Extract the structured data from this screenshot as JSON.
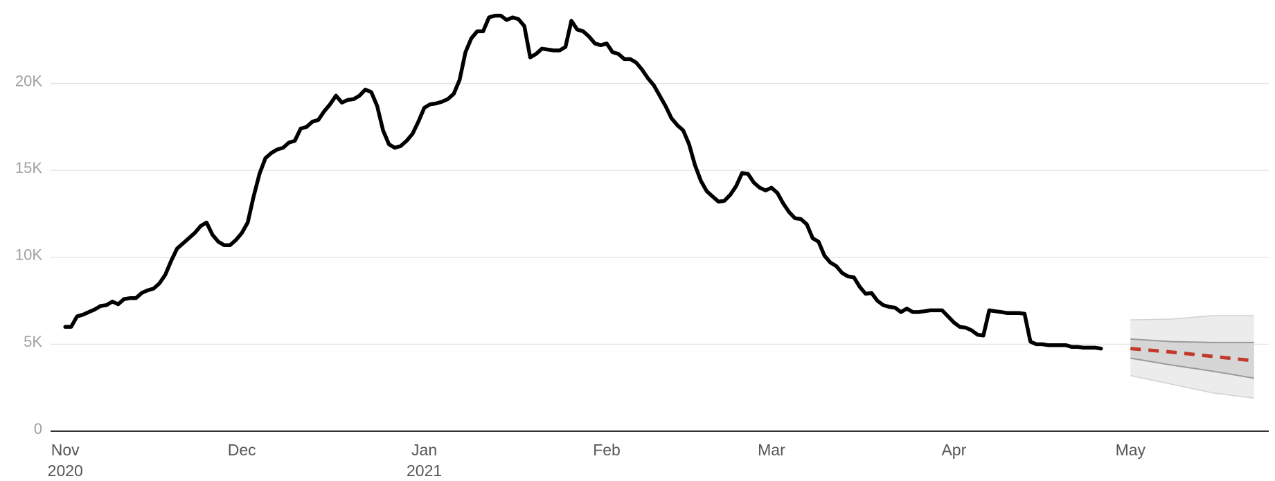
{
  "chart_data": {
    "type": "line",
    "x": [
      0,
      1,
      2,
      3,
      4,
      5,
      6,
      7,
      8,
      9,
      10,
      11,
      12,
      13,
      14,
      15,
      16,
      17,
      18,
      19,
      20,
      21,
      22,
      23,
      24,
      25,
      26,
      27,
      28,
      29,
      30,
      31,
      32,
      33,
      34,
      35,
      36,
      37,
      38,
      39,
      40,
      41,
      42,
      43,
      44,
      45,
      46,
      47,
      48,
      49,
      50,
      51,
      52,
      53,
      54,
      55,
      56,
      57,
      58,
      59,
      60,
      61,
      62,
      63,
      64,
      65,
      66,
      67,
      68,
      69,
      70,
      71,
      72,
      73,
      74,
      75,
      76,
      77,
      78,
      79,
      80,
      81,
      82,
      83,
      84,
      85,
      86,
      87,
      88,
      89,
      90,
      91,
      92,
      93,
      94,
      95,
      96,
      97,
      98,
      99,
      100,
      101,
      102,
      103,
      104,
      105,
      106,
      107,
      108,
      109,
      110,
      111,
      112,
      113,
      114,
      115,
      116,
      117,
      118,
      119,
      120,
      121,
      122,
      123,
      124,
      125,
      126,
      127,
      128,
      129,
      130,
      131,
      132,
      133,
      134,
      135,
      136,
      137,
      138,
      139,
      140,
      141,
      142,
      143,
      144,
      145,
      146,
      147,
      148,
      149,
      150,
      151,
      152,
      153,
      154,
      155,
      156,
      157,
      158,
      159,
      160,
      161,
      162,
      163,
      164,
      165,
      166,
      167,
      168,
      169,
      170,
      171,
      172,
      173,
      174,
      175,
      176
    ],
    "values": [
      6000,
      6000,
      6600,
      6700,
      6850,
      7000,
      7200,
      7250,
      7450,
      7300,
      7600,
      7650,
      7650,
      7950,
      8100,
      8200,
      8500,
      9000,
      9800,
      10500,
      10800,
      11100,
      11400,
      11800,
      12000,
      11300,
      10900,
      10700,
      10700,
      11000,
      11400,
      12000,
      13500,
      14800,
      15700,
      16000,
      16200,
      16300,
      16600,
      16700,
      17400,
      17500,
      17800,
      17900,
      18400,
      18800,
      19300,
      18900,
      19050,
      19100,
      19300,
      19650,
      19500,
      18700,
      17300,
      16500,
      16300,
      16400,
      16700,
      17100,
      17800,
      18600,
      18800,
      18850,
      18950,
      19100,
      19400,
      20200,
      21800,
      22600,
      23000,
      23000,
      23800,
      23900,
      23900,
      23650,
      23800,
      23700,
      23300,
      21500,
      21700,
      22000,
      21950,
      21900,
      21900,
      22100,
      23600,
      23100,
      23000,
      22700,
      22300,
      22200,
      22300,
      21800,
      21700,
      21400,
      21400,
      21200,
      20800,
      20300,
      19900,
      19300,
      18700,
      18000,
      17600,
      17300,
      16500,
      15300,
      14400,
      13800,
      13500,
      13200,
      13250,
      13600,
      14100,
      14850,
      14800,
      14300,
      14000,
      13850,
      14000,
      13700,
      13100,
      12600,
      12250,
      12200,
      11900,
      11100,
      10900,
      10100,
      9700,
      9500,
      9100,
      8900,
      8850,
      8300,
      7900,
      7950,
      7500,
      7250,
      7150,
      7100,
      6850,
      7050,
      6850,
      6850,
      6900,
      6950,
      6950,
      6950,
      6600,
      6250,
      6000,
      5950,
      5800,
      5550,
      5500,
      6950,
      6900,
      6850,
      6800,
      6800,
      6800,
      6750,
      5150,
      5000,
      5000,
      4950,
      4950,
      4950,
      4950,
      4850,
      4850,
      4800,
      4800,
      4800,
      4750
    ],
    "color": "#000000",
    "forecast": {
      "x": [
        181,
        188,
        195,
        202
      ],
      "median": [
        4750,
        4550,
        4300,
        4050
      ],
      "inner_upper": [
        5300,
        5150,
        5100,
        5100
      ],
      "inner_lower": [
        4200,
        3800,
        3450,
        3050
      ],
      "outer_upper": [
        6400,
        6450,
        6650,
        6650
      ],
      "outer_lower": [
        3200,
        2700,
        2200,
        1900
      ],
      "color": "#c0392b",
      "inner_color": "#d6d6d6",
      "outer_color": "#ececec"
    },
    "xlim": [
      -2.5,
      204.5
    ],
    "xticks": [
      {
        "value": 0,
        "label": "Nov",
        "year": "2020"
      },
      {
        "value": 30,
        "label": "Dec"
      },
      {
        "value": 61,
        "label": "Jan",
        "year": "2021"
      },
      {
        "value": 92,
        "label": "Feb"
      },
      {
        "value": 120,
        "label": "Mar"
      },
      {
        "value": 151,
        "label": "Apr"
      },
      {
        "value": 181,
        "label": "May"
      }
    ],
    "ylim": [
      0,
      24800
    ],
    "yticks": [
      0,
      {
        "value": 5000,
        "label": "5K"
      },
      {
        "value": 10000,
        "label": "10K"
      },
      {
        "value": 15000,
        "label": "15K"
      },
      {
        "value": 20000,
        "label": "20K"
      }
    ],
    "grid": true
  }
}
